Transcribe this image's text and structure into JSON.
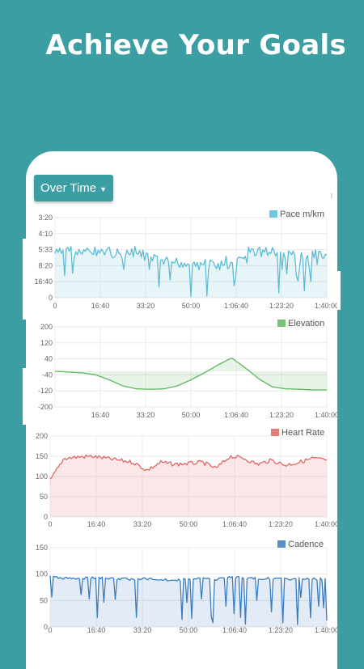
{
  "headline": "Achieve Your Goals",
  "filter_button": {
    "label": "Over Time"
  },
  "colors": {
    "background": "#3a9ea3",
    "pace": "#5bbcd6",
    "elevation": "#5cb85c",
    "heart_rate": "#e06666",
    "cadence": "#3a7cc0"
  },
  "chart_data": [
    {
      "type": "area",
      "id": "pace",
      "legend": "Pace m/km",
      "y_ticks": [
        "3:20",
        "4:10",
        "5:33",
        "8:20",
        "16:40",
        "0"
      ],
      "x_ticks": [
        "0",
        "16:40",
        "33:20",
        "50:00",
        "1:06:40",
        "1:23:20",
        "1:40:00"
      ],
      "x_range": [
        "0",
        "1:40:00"
      ],
      "series": [
        {
          "x": [
            "0",
            "5:00",
            "10:00",
            "15:00",
            "20:00",
            "25:00",
            "30:00",
            "35:00",
            "40:00",
            "45:00",
            "50:00",
            "55:00",
            "1:00:00",
            "1:05:00",
            "1:10:00",
            "1:15:00",
            "1:20:00",
            "1:25:00",
            "1:30:00",
            "1:35:00",
            "1:40:00"
          ],
          "values": [
            "5:50",
            "5:33",
            "5:50",
            "5:33",
            "5:33",
            "6:10",
            "5:33",
            "6:40",
            "7:00",
            "7:10",
            "7:20",
            "7:10",
            "7:40",
            "8:00",
            "5:33",
            "5:33",
            "5:40",
            "6:00",
            "5:50",
            "5:40",
            "6:40"
          ]
        }
      ]
    },
    {
      "type": "area",
      "id": "elevation",
      "legend": "Elevation",
      "y_ticks": [
        "200",
        "120",
        "40",
        "-40",
        "-120",
        "-200"
      ],
      "x_ticks": [
        "16:40",
        "33:20",
        "50:00",
        "1:06:40",
        "1:23:20",
        "1:40:00"
      ],
      "ylim": [
        -200,
        200
      ],
      "series": [
        {
          "x": [
            "0",
            "5:00",
            "10:00",
            "15:00",
            "20:00",
            "25:00",
            "30:00",
            "35:00",
            "40:00",
            "45:00",
            "50:00",
            "55:00",
            "1:00:00",
            "1:05:00",
            "1:10:00",
            "1:15:00",
            "1:20:00",
            "1:25:00",
            "1:30:00",
            "1:35:00",
            "1:40:00"
          ],
          "values": [
            -22,
            -26,
            -30,
            -40,
            -65,
            -95,
            -110,
            -112,
            -110,
            -95,
            -65,
            -30,
            10,
            45,
            -5,
            -60,
            -100,
            -110,
            -112,
            -115,
            -115
          ]
        }
      ]
    },
    {
      "type": "area",
      "id": "heart_rate",
      "legend": "Heart Rate",
      "y_ticks": [
        "200",
        "150",
        "100",
        "50",
        "0"
      ],
      "x_ticks": [
        "0",
        "16:40",
        "33:20",
        "50:00",
        "1:06:40",
        "1:23:20",
        "1:40:00"
      ],
      "ylim": [
        0,
        200
      ],
      "series": [
        {
          "x": [
            "0",
            "5:00",
            "10:00",
            "15:00",
            "20:00",
            "25:00",
            "30:00",
            "35:00",
            "40:00",
            "45:00",
            "50:00",
            "55:00",
            "1:00:00",
            "1:05:00",
            "1:10:00",
            "1:15:00",
            "1:20:00",
            "1:25:00",
            "1:30:00",
            "1:35:00",
            "1:40:00"
          ],
          "values": [
            90,
            145,
            148,
            150,
            145,
            140,
            135,
            115,
            135,
            130,
            132,
            135,
            120,
            150,
            145,
            130,
            140,
            128,
            135,
            145,
            140
          ]
        }
      ]
    },
    {
      "type": "area",
      "id": "cadence",
      "legend": "Cadence",
      "y_ticks": [
        "150",
        "100",
        "50",
        "0"
      ],
      "x_ticks": [
        "0",
        "16:40",
        "33:20",
        "50:00",
        "1:06:40",
        "1:23:20",
        "1:40:00"
      ],
      "ylim": [
        0,
        150
      ],
      "series": [
        {
          "x": [
            "0",
            "5:00",
            "10:00",
            "15:00",
            "20:00",
            "25:00",
            "30:00",
            "35:00",
            "40:00",
            "45:00",
            "50:00",
            "55:00",
            "1:00:00",
            "1:05:00",
            "1:10:00",
            "1:15:00",
            "1:20:00",
            "1:25:00",
            "1:30:00",
            "1:35:00",
            "1:40:00"
          ],
          "values": [
            95,
            92,
            92,
            93,
            92,
            91,
            90,
            91,
            90,
            88,
            90,
            92,
            90,
            94,
            93,
            92,
            91,
            90,
            92,
            91,
            90
          ]
        }
      ]
    }
  ]
}
